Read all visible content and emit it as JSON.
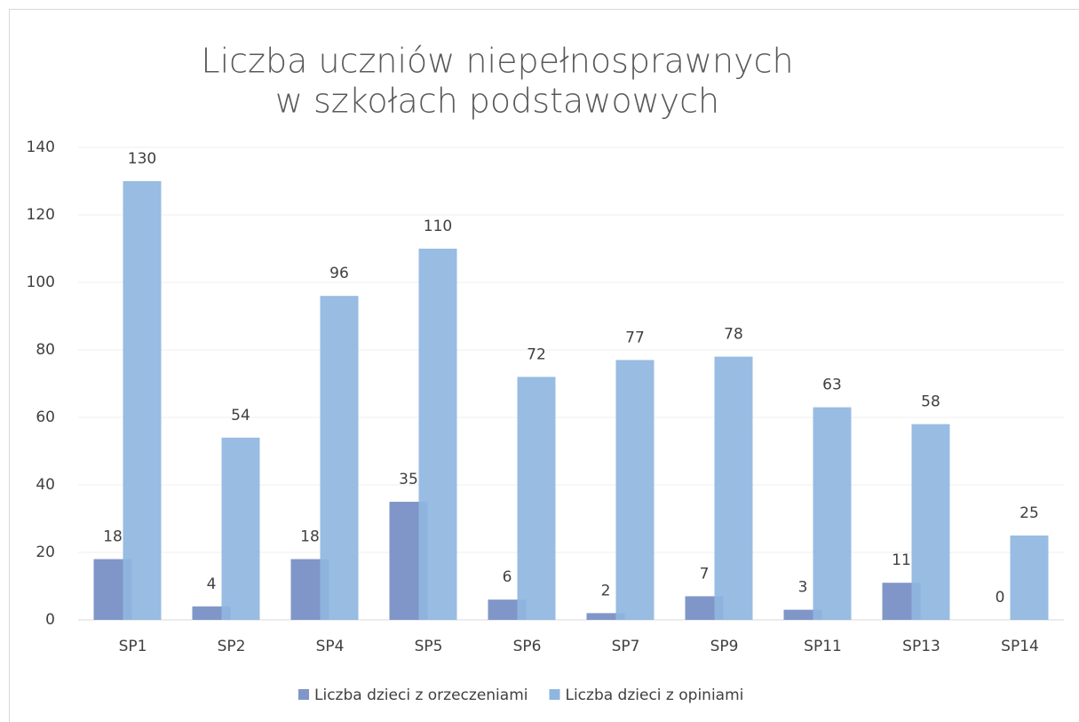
{
  "chart_data": {
    "type": "bar",
    "title": [
      "Liczba uczniów niepełnosprawnych",
      "w szkołach podstawowych"
    ],
    "categories": [
      "SP1",
      "SP2",
      "SP4",
      "SP5",
      "SP6",
      "SP7",
      "SP9",
      "SP11",
      "SP13",
      "SP14"
    ],
    "series": [
      {
        "name": "Liczba dzieci z orzeczeniami",
        "color": "#8096c8",
        "values": [
          18,
          4,
          18,
          35,
          6,
          2,
          7,
          3,
          11,
          0
        ]
      },
      {
        "name": "Liczba dzieci z opiniami",
        "color": "#8fb6df",
        "values": [
          130,
          54,
          96,
          110,
          72,
          77,
          78,
          63,
          58,
          25
        ]
      }
    ],
    "ylim": [
      0,
      140
    ],
    "yticks": [
      0,
      20,
      40,
      60,
      80,
      100,
      120,
      140
    ],
    "grid": true,
    "legend": "bottom"
  }
}
